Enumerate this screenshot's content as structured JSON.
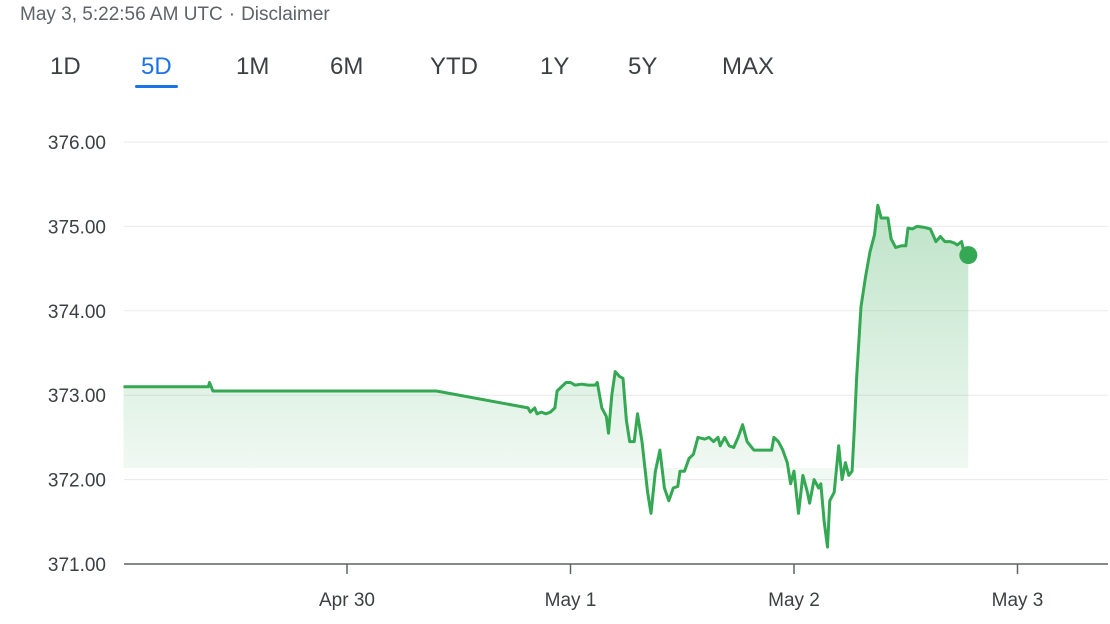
{
  "header": {
    "timestamp": "May 3, 5:22:56 AM UTC",
    "separator": "·",
    "disclaimer": "Disclaimer"
  },
  "tabs": [
    {
      "label": "1D",
      "active": false
    },
    {
      "label": "5D",
      "active": true
    },
    {
      "label": "1M",
      "active": false
    },
    {
      "label": "6M",
      "active": false
    },
    {
      "label": "YTD",
      "active": false
    },
    {
      "label": "1Y",
      "active": false
    },
    {
      "label": "5Y",
      "active": false
    },
    {
      "label": "MAX",
      "active": false
    }
  ],
  "colors": {
    "line": "#34a853",
    "fill": "#34a853",
    "grid": "#e8eaed",
    "axis": "#5f6368",
    "active_tab": "#1a73e8"
  },
  "chart_data": {
    "type": "area",
    "ylim": [
      371.0,
      376.0
    ],
    "xlim": [
      0,
      4.35
    ],
    "yticks": [
      "376.00",
      "375.00",
      "374.00",
      "373.00",
      "372.00",
      "371.00"
    ],
    "ytick_values": [
      376,
      375,
      374,
      373,
      372,
      371
    ],
    "xticks": [
      {
        "label": "Apr 30",
        "x": 1
      },
      {
        "label": "May 1",
        "x": 2
      },
      {
        "label": "May 2",
        "x": 3
      },
      {
        "label": "May 3",
        "x": 4
      }
    ],
    "grid": true,
    "points": [
      [
        0.0,
        373.1
      ],
      [
        0.38,
        373.1
      ],
      [
        0.385,
        373.15
      ],
      [
        0.4,
        373.05
      ],
      [
        1.4,
        373.05
      ],
      [
        1.81,
        372.85
      ],
      [
        1.82,
        372.8
      ],
      [
        1.84,
        372.85
      ],
      [
        1.85,
        372.78
      ],
      [
        1.87,
        372.8
      ],
      [
        1.89,
        372.78
      ],
      [
        1.91,
        372.8
      ],
      [
        1.93,
        372.85
      ],
      [
        1.94,
        373.05
      ],
      [
        1.98,
        373.15
      ],
      [
        2.0,
        373.15
      ],
      [
        2.02,
        373.12
      ],
      [
        2.05,
        373.13
      ],
      [
        2.08,
        373.12
      ],
      [
        2.11,
        373.12
      ],
      [
        2.12,
        373.15
      ],
      [
        2.14,
        372.85
      ],
      [
        2.16,
        372.75
      ],
      [
        2.17,
        372.55
      ],
      [
        2.185,
        373.0
      ],
      [
        2.2,
        373.28
      ],
      [
        2.22,
        373.22
      ],
      [
        2.235,
        373.2
      ],
      [
        2.25,
        372.7
      ],
      [
        2.265,
        372.45
      ],
      [
        2.285,
        372.45
      ],
      [
        2.3,
        372.78
      ],
      [
        2.32,
        372.45
      ],
      [
        2.345,
        371.85
      ],
      [
        2.36,
        371.6
      ],
      [
        2.38,
        372.1
      ],
      [
        2.4,
        372.35
      ],
      [
        2.42,
        371.9
      ],
      [
        2.44,
        371.75
      ],
      [
        2.46,
        371.9
      ],
      [
        2.48,
        371.92
      ],
      [
        2.49,
        372.1
      ],
      [
        2.51,
        372.1
      ],
      [
        2.53,
        372.25
      ],
      [
        2.55,
        372.3
      ],
      [
        2.57,
        372.5
      ],
      [
        2.6,
        372.48
      ],
      [
        2.62,
        372.5
      ],
      [
        2.64,
        372.45
      ],
      [
        2.66,
        372.5
      ],
      [
        2.67,
        372.4
      ],
      [
        2.69,
        372.5
      ],
      [
        2.71,
        372.4
      ],
      [
        2.73,
        372.38
      ],
      [
        2.75,
        372.5
      ],
      [
        2.77,
        372.65
      ],
      [
        2.79,
        372.45
      ],
      [
        2.82,
        372.35
      ],
      [
        2.86,
        372.35
      ],
      [
        2.9,
        372.35
      ],
      [
        2.91,
        372.5
      ],
      [
        2.93,
        372.45
      ],
      [
        2.95,
        372.35
      ],
      [
        2.97,
        372.2
      ],
      [
        2.985,
        371.95
      ],
      [
        3.0,
        372.1
      ],
      [
        3.02,
        371.6
      ],
      [
        3.04,
        372.05
      ],
      [
        3.06,
        371.85
      ],
      [
        3.07,
        371.72
      ],
      [
        3.09,
        372.0
      ],
      [
        3.11,
        371.9
      ],
      [
        3.12,
        371.95
      ],
      [
        3.135,
        371.5
      ],
      [
        3.15,
        371.2
      ],
      [
        3.16,
        371.75
      ],
      [
        3.18,
        371.85
      ],
      [
        3.2,
        372.4
      ],
      [
        3.215,
        372.0
      ],
      [
        3.23,
        372.2
      ],
      [
        3.245,
        372.05
      ],
      [
        3.26,
        372.1
      ],
      [
        3.27,
        372.6
      ],
      [
        3.28,
        373.2
      ],
      [
        3.3,
        374.05
      ],
      [
        3.32,
        374.4
      ],
      [
        3.34,
        374.7
      ],
      [
        3.36,
        374.9
      ],
      [
        3.375,
        375.25
      ],
      [
        3.39,
        375.1
      ],
      [
        3.42,
        375.1
      ],
      [
        3.435,
        374.85
      ],
      [
        3.455,
        374.75
      ],
      [
        3.48,
        374.77
      ],
      [
        3.5,
        374.77
      ],
      [
        3.51,
        374.98
      ],
      [
        3.53,
        374.97
      ],
      [
        3.55,
        375.0
      ],
      [
        3.58,
        374.99
      ],
      [
        3.61,
        374.97
      ],
      [
        3.625,
        374.88
      ],
      [
        3.635,
        374.82
      ],
      [
        3.655,
        374.88
      ],
      [
        3.675,
        374.82
      ],
      [
        3.7,
        374.82
      ],
      [
        3.72,
        374.8
      ],
      [
        3.73,
        374.78
      ],
      [
        3.75,
        374.82
      ],
      [
        3.76,
        374.7
      ],
      [
        3.78,
        374.66
      ]
    ],
    "last_value": 374.66
  }
}
